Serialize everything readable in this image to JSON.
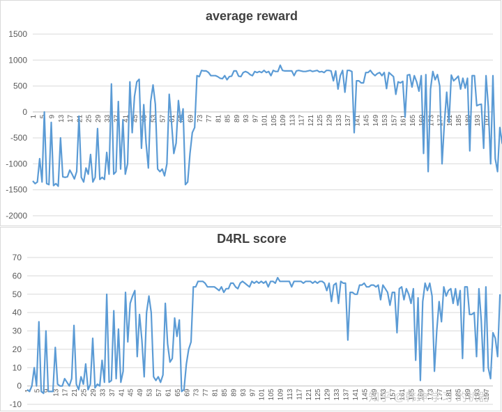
{
  "chart_data": [
    {
      "type": "line",
      "title": "average reward",
      "ylim": [
        -2000,
        1500
      ],
      "yticks": [
        -2000,
        -1500,
        -1000,
        -500,
        0,
        500,
        1000,
        1500
      ],
      "x_range": [
        1,
        200
      ],
      "xticks": [
        1,
        5,
        9,
        13,
        17,
        21,
        25,
        29,
        33,
        37,
        41,
        45,
        49,
        53,
        57,
        61,
        65,
        69,
        73,
        77,
        81,
        85,
        89,
        93,
        97,
        101,
        105,
        109,
        113,
        117,
        121,
        125,
        129,
        133,
        137,
        141,
        145,
        149,
        153,
        157,
        161,
        165,
        169,
        173,
        177,
        181,
        185,
        189,
        193,
        197
      ],
      "series": [
        {
          "color": "#5b9bd5",
          "values": [
            -1330,
            -1380,
            -1350,
            -900,
            -1350,
            0,
            -1380,
            -1400,
            -200,
            -1420,
            -1380,
            -1430,
            -500,
            -1250,
            -1260,
            -1250,
            -1120,
            -1200,
            -1290,
            -1150,
            -80,
            -1260,
            -1350,
            -1080,
            -1200,
            -820,
            -1350,
            -1260,
            -320,
            -1300,
            -1260,
            -1300,
            -780,
            -1200,
            540,
            -1200,
            -1150,
            200,
            -1100,
            -150,
            -1200,
            -1000,
            580,
            -400,
            300,
            580,
            630,
            -700,
            140,
            -600,
            -1080,
            200,
            520,
            150,
            -1100,
            -1150,
            -1100,
            -1230,
            -1000,
            340,
            -200,
            -800,
            -600,
            220,
            -200,
            60,
            -1400,
            -1350,
            -800,
            -400,
            -300,
            700,
            680,
            800,
            790,
            790,
            760,
            700,
            700,
            700,
            680,
            650,
            640,
            700,
            620,
            680,
            690,
            790,
            790,
            690,
            680,
            760,
            780,
            760,
            720,
            700,
            780,
            760,
            780,
            760,
            800,
            760,
            780,
            700,
            800,
            780,
            780,
            900,
            800,
            790,
            790,
            790,
            790,
            700,
            790,
            800,
            790,
            780,
            780,
            790,
            800,
            780,
            790,
            800,
            770,
            780,
            760,
            800,
            800,
            790,
            600,
            790,
            440,
            700,
            800,
            380,
            800,
            800,
            780,
            -400,
            600,
            600,
            560,
            560,
            760,
            760,
            800,
            740,
            700,
            740,
            760,
            700,
            760,
            450,
            760,
            720,
            680,
            340,
            580,
            560,
            590,
            -100,
            710,
            720,
            480,
            700,
            580,
            400,
            700,
            -800,
            720,
            -1150,
            440,
            780,
            620,
            720,
            500,
            -1000,
            -200,
            380,
            -200,
            710,
            600,
            640,
            690,
            440,
            650,
            460,
            650,
            -750,
            700,
            700,
            120,
            140,
            150,
            -700,
            700,
            100,
            -1000,
            700,
            -900,
            -1150,
            -300,
            -600,
            -700,
            520
          ]
        }
      ]
    },
    {
      "type": "line",
      "title": "D4RL score",
      "ylim": [
        -10,
        70
      ],
      "yticks": [
        -10,
        0,
        10,
        20,
        30,
        40,
        50,
        60,
        70
      ],
      "x_range": [
        1,
        200
      ],
      "xticks": [
        1,
        5,
        9,
        13,
        17,
        21,
        25,
        29,
        33,
        37,
        41,
        45,
        49,
        53,
        57,
        61,
        65,
        69,
        73,
        77,
        81,
        85,
        89,
        93,
        97,
        101,
        105,
        109,
        113,
        117,
        121,
        125,
        129,
        133,
        137,
        141,
        145,
        149,
        153,
        157,
        161,
        165,
        169,
        173,
        177,
        181,
        185,
        189,
        193,
        197
      ],
      "series": [
        {
          "color": "#5b9bd5",
          "values": [
            -2,
            -3,
            0,
            10,
            0,
            35,
            -3,
            -4,
            30,
            -3,
            -3,
            -3,
            21,
            1,
            0,
            0,
            4,
            2,
            0,
            4,
            33,
            1,
            -2,
            5,
            1,
            12,
            -2,
            1,
            26,
            -1,
            1,
            0,
            14,
            2,
            50,
            2,
            3,
            41,
            4,
            31,
            2,
            8,
            51,
            24,
            45,
            49,
            52,
            16,
            39,
            25,
            5,
            40,
            49,
            40,
            5,
            3,
            5,
            2,
            6,
            45,
            23,
            13,
            15,
            37,
            27,
            36,
            -3,
            -2,
            12,
            20,
            24,
            54,
            54,
            57,
            57,
            57,
            56,
            54,
            54,
            54,
            54,
            53,
            52,
            54,
            51,
            53,
            53,
            56,
            56,
            54,
            53,
            56,
            57,
            56,
            55,
            54,
            57,
            56,
            57,
            56,
            57,
            56,
            57,
            54,
            57,
            57,
            56,
            59,
            57,
            57,
            57,
            57,
            57,
            54,
            57,
            57,
            57,
            57,
            56,
            57,
            57,
            57,
            56,
            57,
            56,
            57,
            57,
            56,
            52,
            56,
            46,
            55,
            56,
            45,
            57,
            56,
            56,
            25,
            51,
            51,
            50,
            50,
            55,
            55,
            56,
            54,
            54,
            55,
            55,
            54,
            55,
            47,
            55,
            53,
            51,
            44,
            51,
            51,
            29,
            53,
            54,
            47,
            53,
            50,
            45,
            53,
            14,
            48,
            3,
            46,
            56,
            52,
            56,
            49,
            8,
            30,
            46,
            35,
            54,
            49,
            52,
            53,
            45,
            53,
            44,
            52,
            15,
            54,
            54,
            39,
            39,
            40,
            16,
            53,
            36,
            8,
            54,
            10,
            4,
            29,
            26,
            16,
            50
          ]
        }
      ]
    }
  ],
  "watermark": "知乎 @韩绅 学习 的机器"
}
